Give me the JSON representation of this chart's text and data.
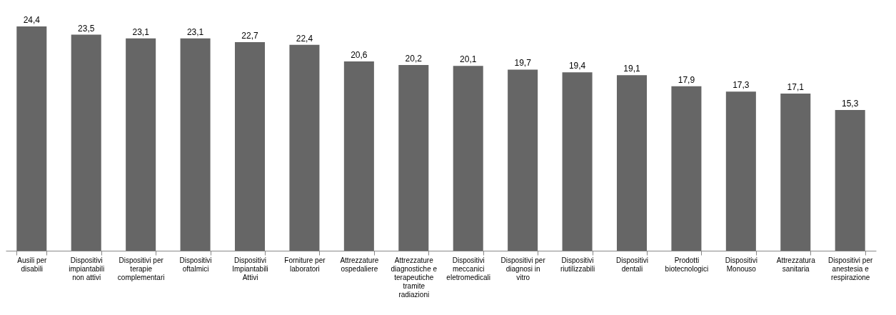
{
  "chart_data": {
    "type": "bar",
    "categories": [
      "Ausili per disabili",
      "Dispositivi impiantabili non attivi",
      "Dispositivi per terapie complementari",
      "Dispositivi oftalmici",
      "Dispositivi Impiantabili Attivi",
      "Forniture per laboratori",
      "Attrezzature ospedaliere",
      "Attrezzature diagnostiche e terapeutiche tramite radiazioni",
      "Dispositivi meccanici eletromedicali",
      "Dispositivi per diagnosi in vitro",
      "Dispositivi riutilizzabili",
      "Dispositivi dentali",
      "Prodotti biotecnologici",
      "Dispositivi Monouso",
      "Attrezzatura sanitaria",
      "Dispositivi per anestesia e respirazione"
    ],
    "values": [
      24.4,
      23.5,
      23.1,
      23.1,
      22.7,
      22.4,
      20.6,
      20.2,
      20.1,
      19.7,
      19.4,
      19.1,
      17.9,
      17.3,
      17.1,
      15.3
    ],
    "value_labels": [
      "24,4",
      "23,5",
      "23,1",
      "23,1",
      "22,7",
      "22,4",
      "20,6",
      "20,2",
      "20,1",
      "19,7",
      "19,4",
      "19,1",
      "17,9",
      "17,3",
      "17,1",
      "15,3"
    ],
    "color": "#666666"
  }
}
